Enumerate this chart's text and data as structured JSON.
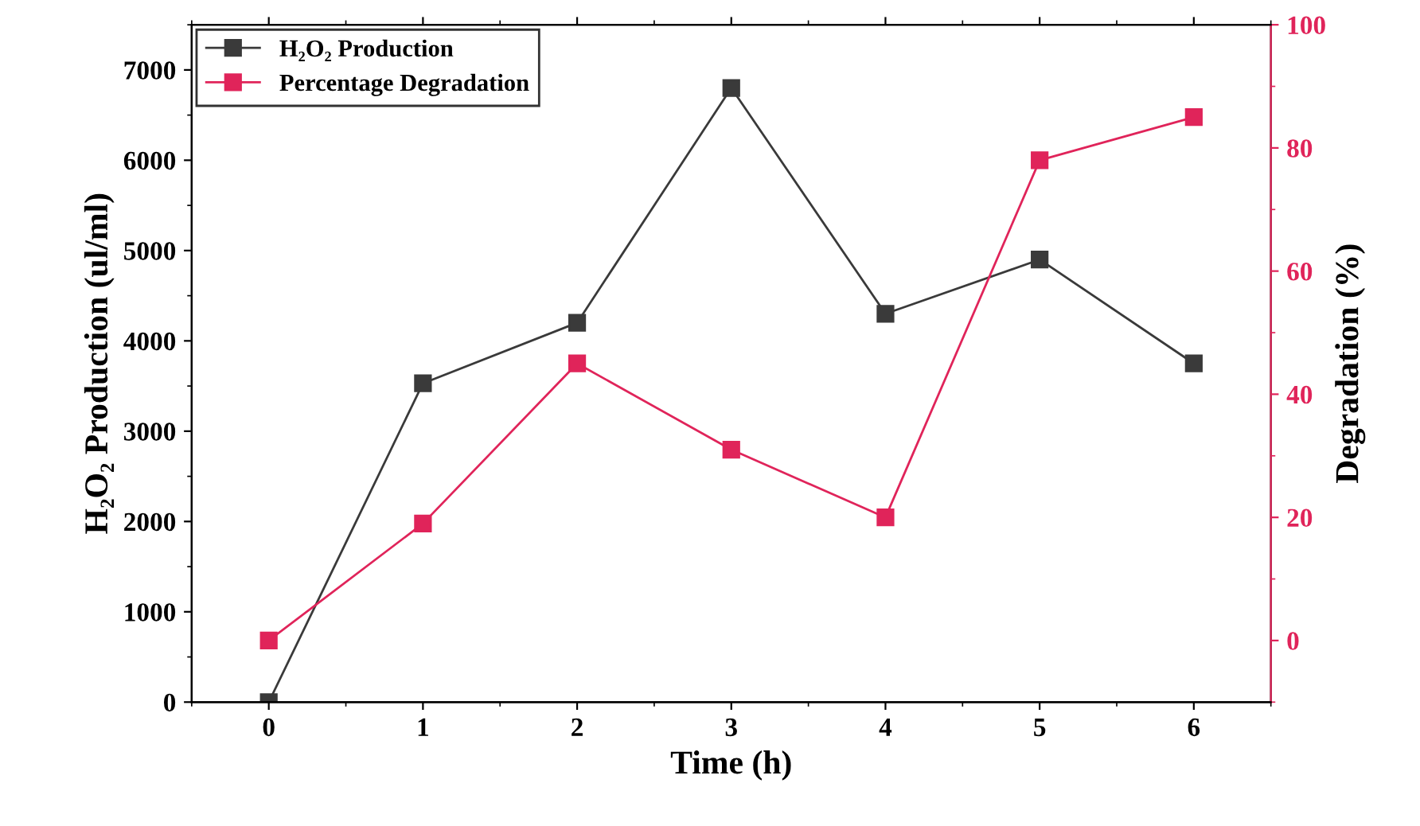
{
  "chart_data": {
    "type": "line",
    "xlabel": "Time (h)",
    "ylabel": "H₂O₂ Production (ul/ml)",
    "y2label": "Degradation (%)",
    "x": [
      0,
      1,
      2,
      3,
      4,
      5,
      6
    ],
    "series": [
      {
        "name": "H₂O₂ Production",
        "color": "#3a3a3a",
        "values": [
          0,
          3530,
          4200,
          6800,
          4300,
          4900,
          3750
        ]
      },
      {
        "name": "Percentage Degradation",
        "color": "#e0245a",
        "axis": "y2",
        "values": [
          0,
          19,
          45,
          31,
          20,
          78,
          85
        ]
      }
    ],
    "xlim": [
      -0.5,
      6.5
    ],
    "xticks": [
      0,
      1,
      2,
      3,
      4,
      5,
      6
    ],
    "ylim": [
      0,
      7500
    ],
    "yticks": [
      0,
      1000,
      2000,
      3000,
      4000,
      5000,
      6000,
      7000
    ],
    "y2lim": [
      -10,
      100
    ],
    "y2ticks": [
      0,
      20,
      40,
      60,
      80,
      100
    ],
    "marker": "square",
    "line_style": "solid",
    "grid": false,
    "legend": "top left"
  }
}
